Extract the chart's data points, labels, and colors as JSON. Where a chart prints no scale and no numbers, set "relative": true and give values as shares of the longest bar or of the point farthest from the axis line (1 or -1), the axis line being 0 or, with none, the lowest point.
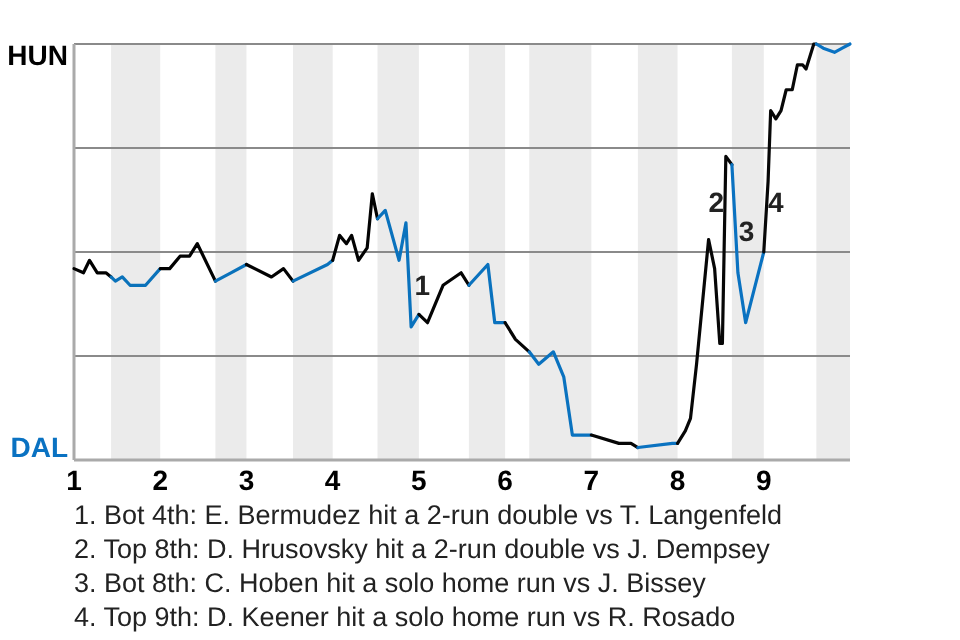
{
  "chart_data": {
    "type": "line",
    "xlim": [
      1,
      10
    ],
    "xticks": [
      1,
      2,
      3,
      4,
      5,
      6,
      7,
      8,
      9
    ],
    "relative": true,
    "grid": "y",
    "marker": "none",
    "line_style": "solid",
    "series": [
      {
        "color": "#000000",
        "x": [
          1,
          1.11,
          1.18,
          1.27,
          1.37,
          1.43
        ],
        "values": [
          0.46,
          0.45,
          0.48,
          0.45,
          0.45,
          0.44
        ]
      },
      {
        "color": "#0a72ba",
        "x": [
          1.43,
          1.48,
          1.56,
          1.65,
          1.83,
          2
        ],
        "values": [
          0.44,
          0.43,
          0.44,
          0.42,
          0.42,
          0.46
        ]
      },
      {
        "color": "#010101",
        "x": [
          2,
          2.11,
          2.23,
          2.34,
          2.43,
          2.64
        ],
        "values": [
          0.46,
          0.46,
          0.49,
          0.49,
          0.52,
          0.43
        ]
      },
      {
        "color": "#0a72bb",
        "x": [
          2.64,
          2.82,
          3
        ],
        "values": [
          0.43,
          0.45,
          0.47
        ]
      },
      {
        "color": "#020202",
        "x": [
          3,
          3.29,
          3.43,
          3.54
        ],
        "values": [
          0.47,
          0.44,
          0.46,
          0.43
        ]
      },
      {
        "color": "#0a72bc",
        "x": [
          3.54,
          3.94,
          4
        ],
        "values": [
          0.43,
          0.47,
          0.48
        ]
      },
      {
        "color": "#030303",
        "x": [
          4,
          4.08,
          4.16,
          4.22,
          4.3,
          4.4,
          4.46,
          4.52
        ],
        "values": [
          0.48,
          0.54,
          0.52,
          0.54,
          0.48,
          0.51,
          0.64,
          0.58
        ]
      },
      {
        "color": "#0a72bd",
        "x": [
          4.52,
          4.61,
          4.77,
          4.85,
          4.91,
          5
        ],
        "values": [
          0.58,
          0.6,
          0.48,
          0.57,
          0.32,
          0.35
        ]
      },
      {
        "color": "#040404",
        "x": [
          5,
          5.1,
          5.28,
          5.49,
          5.58
        ],
        "values": [
          0.35,
          0.33,
          0.42,
          0.45,
          0.42
        ]
      },
      {
        "color": "#0a72be",
        "x": [
          5.58,
          5.8,
          5.88,
          6
        ],
        "values": [
          0.42,
          0.47,
          0.33,
          0.33
        ]
      },
      {
        "color": "#050505",
        "x": [
          6,
          6.12,
          6.28
        ],
        "values": [
          0.33,
          0.29,
          0.26
        ]
      },
      {
        "color": "#0a72bf",
        "x": [
          6.28,
          6.39,
          6.56,
          6.68,
          6.78,
          7
        ],
        "values": [
          0.26,
          0.23,
          0.26,
          0.2,
          0.06,
          0.06
        ]
      },
      {
        "color": "#060606",
        "x": [
          7,
          7.32,
          7.46,
          7.54
        ],
        "values": [
          0.06,
          0.04,
          0.04,
          0.03
        ]
      },
      {
        "color": "#0a72c0",
        "x": [
          7.54,
          7.94,
          8
        ],
        "values": [
          0.03,
          0.04,
          0.04
        ]
      },
      {
        "color": "#070707",
        "x": [
          8,
          8.09,
          8.15,
          8.22,
          8.36,
          8.43,
          8.49,
          8.52,
          8.56,
          8.63
        ],
        "values": [
          0.04,
          0.07,
          0.1,
          0.23,
          0.53,
          0.46,
          0.28,
          0.28,
          0.73,
          0.71
        ]
      },
      {
        "color": "#0a72c1",
        "x": [
          8.63,
          8.7,
          8.79,
          9
        ],
        "values": [
          0.71,
          0.45,
          0.33,
          0.5
        ]
      },
      {
        "color": "#080808",
        "x": [
          9,
          9.05,
          9.08,
          9.14,
          9.2,
          9.26,
          9.33,
          9.39,
          9.45,
          9.49,
          9.58,
          9.61
        ],
        "values": [
          0.5,
          0.67,
          0.84,
          0.82,
          0.84,
          0.89,
          0.89,
          0.95,
          0.95,
          0.94,
          1,
          1
        ]
      },
      {
        "color": "#0a72c2",
        "x": [
          9.61,
          9.69,
          9.82,
          9.91,
          10
        ],
        "values": [
          1,
          0.99,
          0.98,
          0.99,
          1
        ]
      }
    ],
    "bands": [
      {
        "axis": "x",
        "from": 1.43,
        "to": 2,
        "color": "#ebebeb"
      },
      {
        "axis": "x",
        "from": 2.64,
        "to": 3,
        "color": "#ebebeb"
      },
      {
        "axis": "x",
        "from": 3.54,
        "to": 4,
        "color": "#ebebeb"
      },
      {
        "axis": "x",
        "from": 4.52,
        "to": 5,
        "color": "#ebebeb"
      },
      {
        "axis": "x",
        "from": 5.58,
        "to": 6,
        "color": "#ebebeb"
      },
      {
        "axis": "x",
        "from": 6.28,
        "to": 7,
        "color": "#ebebeb"
      },
      {
        "axis": "x",
        "from": 7.54,
        "to": 8,
        "color": "#ebebeb"
      },
      {
        "axis": "x",
        "from": 8.63,
        "to": 9,
        "color": "#ebebeb"
      },
      {
        "axis": "x",
        "from": 9.61,
        "to": 10,
        "color": "#ebebeb"
      }
    ],
    "annotations": [
      "HUN",
      "DAL",
      {
        "text": "1",
        "x": 5.04,
        "y": 0.42
      },
      {
        "text": "2",
        "x": 8.45,
        "y": 0.62
      },
      {
        "text": "3",
        "x": 8.8,
        "y": 0.55
      },
      {
        "text": "4",
        "x": 9.14,
        "y": 0.62
      },
      "1. Bot 4th: E. Bermudez hit a 2-run double vs T. Langenfeld",
      "2. Top 8th: D. Hrusovsky hit a 2-run double vs J. Dempsey",
      "3. Bot 8th: C. Hoben hit a solo home run vs J. Bissey",
      "4. Top 9th: D. Keener hit a solo home run vs R. Rosado"
    ]
  }
}
